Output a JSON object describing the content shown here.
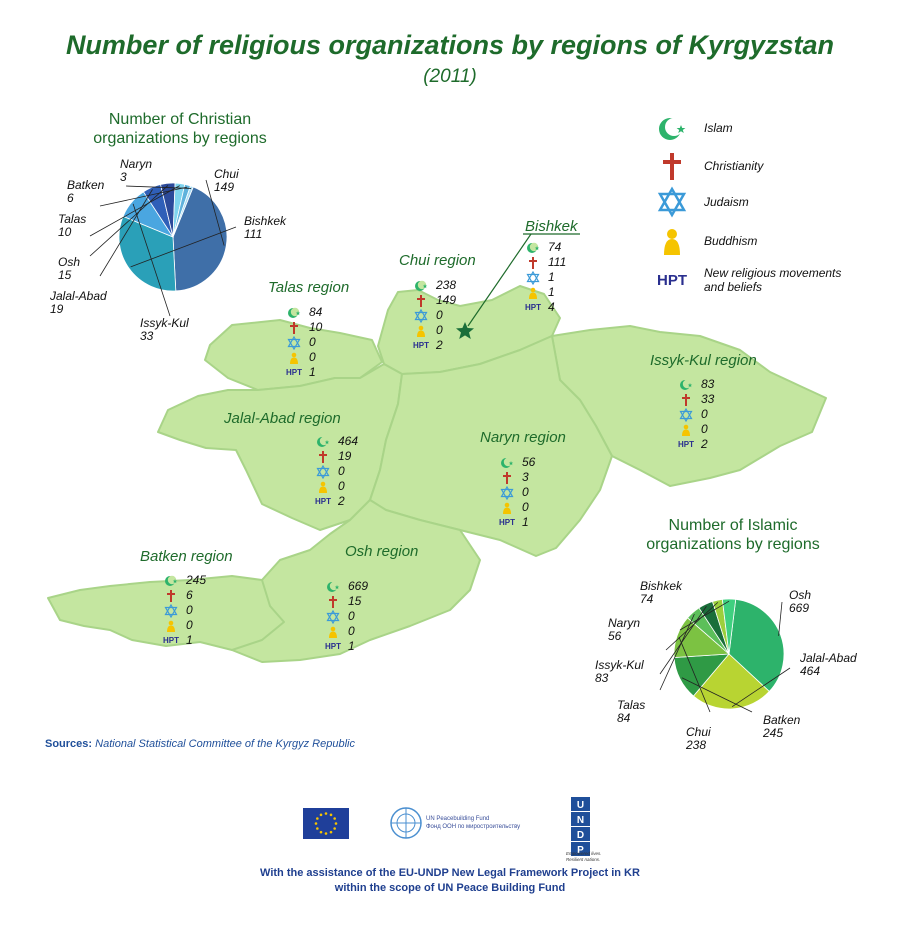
{
  "title": "Number of religious organizations by regions of Kyrgyzstan",
  "subtitle": "(2011)",
  "colors": {
    "map_fill": "#c4e6a0",
    "map_stroke": "#a9d488",
    "title_green": "#1e6b2b",
    "islam": "#2db36b",
    "christianity": "#c0392b",
    "judaism": "#3b9ad8",
    "buddhism": "#f5c400",
    "hpt": "#2a2f8f"
  },
  "legend": [
    {
      "icon": "crescent-star-icon",
      "label": "Islam"
    },
    {
      "icon": "cross-icon",
      "label": "Christianity"
    },
    {
      "icon": "star-of-david-icon",
      "label": "Judaism"
    },
    {
      "icon": "buddha-icon",
      "label": "Buddhism"
    },
    {
      "icon": "hpt-icon",
      "label": "New religious movements and beliefs"
    }
  ],
  "hpt_text": "HPT",
  "regions": {
    "talas": {
      "name": "Talas region",
      "islam": 84,
      "christianity": 10,
      "judaism": 0,
      "buddhism": 0,
      "new": 1
    },
    "chui": {
      "name": "Chui region",
      "islam": 238,
      "christianity": 149,
      "judaism": 0,
      "buddhism": 0,
      "new": 2
    },
    "bishkek": {
      "name": "Bishkek",
      "islam": 74,
      "christianity": 111,
      "judaism": 1,
      "buddhism": 1,
      "new": 4
    },
    "issyk": {
      "name": "Issyk-Kul region",
      "islam": 83,
      "christianity": 33,
      "judaism": 0,
      "buddhism": 0,
      "new": 2
    },
    "jalal": {
      "name": "Jalal-Abad region",
      "islam": 464,
      "christianity": 19,
      "judaism": 0,
      "buddhism": 0,
      "new": 2
    },
    "naryn": {
      "name": "Naryn region",
      "islam": 56,
      "christianity": 3,
      "judaism": 0,
      "buddhism": 0,
      "new": 1
    },
    "batken": {
      "name": "Batken region",
      "islam": 245,
      "christianity": 6,
      "judaism": 0,
      "buddhism": 0,
      "new": 1
    },
    "osh": {
      "name": "Osh region",
      "islam": 669,
      "christianity": 15,
      "judaism": 0,
      "buddhism": 0,
      "new": 1
    }
  },
  "chart_data": [
    {
      "type": "pie",
      "title": "Number of Christian organizations by regions",
      "categories": [
        "Chui",
        "Bishkek",
        "Issyk-Kul",
        "Jalal-Abad",
        "Osh",
        "Talas",
        "Batken",
        "Naryn"
      ],
      "values": [
        149,
        111,
        33,
        19,
        15,
        10,
        6,
        3
      ],
      "colors": [
        "#3f6fa8",
        "#2aa0b8",
        "#4aa6e0",
        "#2f5fb8",
        "#2c4a9a",
        "#7fd4ee",
        "#5fb2dc",
        "#a9def5"
      ]
    },
    {
      "type": "pie",
      "title": "Number of Islamic organizations by regions",
      "categories": [
        "Osh",
        "Jalal-Abad",
        "Batken",
        "Chui",
        "Talas",
        "Issyk-Kul",
        "Naryn",
        "Bishkek"
      ],
      "values": [
        669,
        464,
        245,
        238,
        84,
        83,
        56,
        74
      ],
      "colors": [
        "#2db36b",
        "#b8d432",
        "#2f9a45",
        "#7cc242",
        "#5cbf5a",
        "#1a6e3a",
        "#9ccf3c",
        "#3fd07f"
      ]
    }
  ],
  "sources_label": "Sources:",
  "sources_text": "National Statistical Committee of the Kyrgyz Republic",
  "logos": {
    "unpbf_line1": "UN Peacebuilding Fund",
    "unpbf_line2": "Фонд ООН по миростроительству",
    "undp_tagline": "Empowered lives. Resilient nations.",
    "undp_letters": [
      "U",
      "N",
      "D",
      "P"
    ]
  },
  "assistance": [
    "With the assistance of the EU-UNDP New Legal Framework Project in KR",
    "within the scope of UN Peace Building Fund"
  ]
}
